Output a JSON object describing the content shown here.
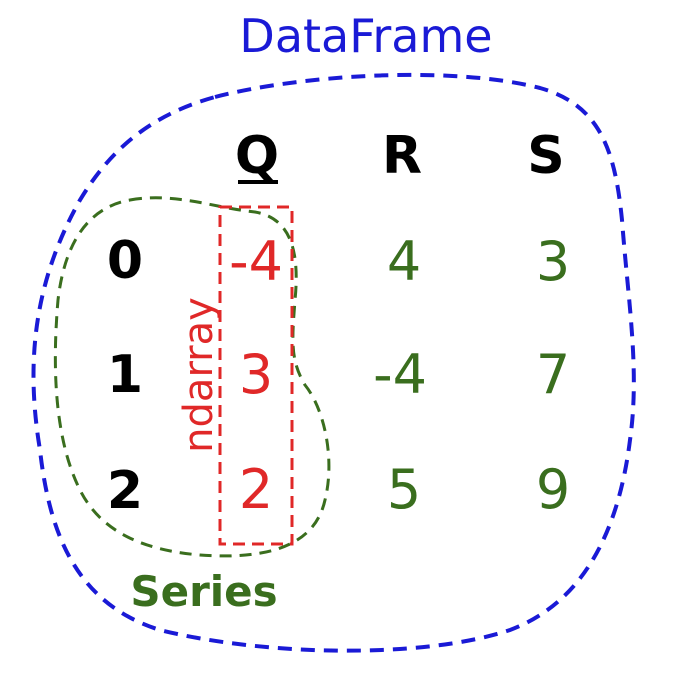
{
  "diagram": {
    "dataframe_label": "DataFrame",
    "series_label": "Series",
    "ndarray_label": "ndarray",
    "columns": [
      "Q",
      "R",
      "S"
    ],
    "index": [
      "0",
      "1",
      "2"
    ],
    "rows": [
      [
        "-4",
        "4",
        "3"
      ],
      [
        "3",
        "-4",
        "7"
      ],
      [
        "2",
        "5",
        "9"
      ]
    ],
    "colors": {
      "dataframe": "#1a1ad6",
      "series": "#3a6e1e",
      "ndarray": "#e02828",
      "header": "#000000"
    }
  }
}
